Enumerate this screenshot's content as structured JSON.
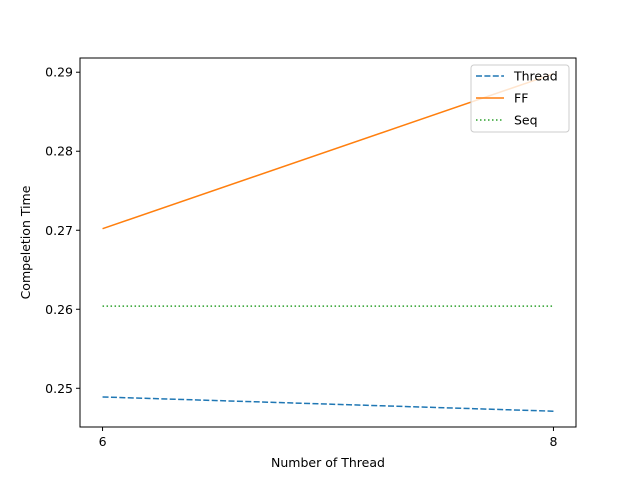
{
  "chart_data": {
    "type": "line",
    "title": "",
    "xlabel": "Number of Thread",
    "ylabel": "Compeletion Time",
    "x": [
      6,
      8
    ],
    "xticks": [
      6,
      8
    ],
    "xlim": [
      5.9,
      8.1
    ],
    "yticks": [
      0.25,
      0.26,
      0.27,
      0.28,
      0.29
    ],
    "ytick_labels": [
      "0.25",
      "0.26",
      "0.27",
      "0.28",
      "0.29"
    ],
    "ylim": [
      0.2451,
      0.2918
    ],
    "grid": false,
    "legend_position": "top-right",
    "series": [
      {
        "name": "Thread",
        "values": [
          0.2489,
          0.2471
        ],
        "color": "#1f77b4",
        "style": "dashed"
      },
      {
        "name": "FF",
        "values": [
          0.2702,
          0.2898
        ],
        "color": "#ff7f0e",
        "style": "solid"
      },
      {
        "name": "Seq",
        "values": [
          0.2604,
          0.2604
        ],
        "color": "#2ca02c",
        "style": "dotted"
      }
    ]
  }
}
